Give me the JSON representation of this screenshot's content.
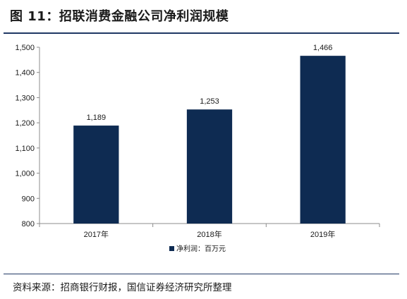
{
  "figure": {
    "title": "图 11：招联消费金融公司净利润规模",
    "source": "资料来源：招商银行财报，国信证券经济研究所整理"
  },
  "chart_data": {
    "type": "bar",
    "categories": [
      "2017年",
      "2018年",
      "2019年"
    ],
    "series": [
      {
        "name": "净利润：百万元",
        "values": [
          1189,
          1253,
          1466
        ]
      }
    ],
    "data_labels": [
      "1,189",
      "1,253",
      "1,466"
    ],
    "ylim": [
      800,
      1500
    ],
    "yticks": [
      800,
      900,
      1000,
      1100,
      1200,
      1300,
      1400,
      1500
    ],
    "ytick_labels": [
      "800",
      "900",
      "1,000",
      "1,100",
      "1,200",
      "1,300",
      "1,400",
      "1,500"
    ],
    "grid": false,
    "legend_position": "bottom",
    "bar_color": "#0e2b52"
  }
}
